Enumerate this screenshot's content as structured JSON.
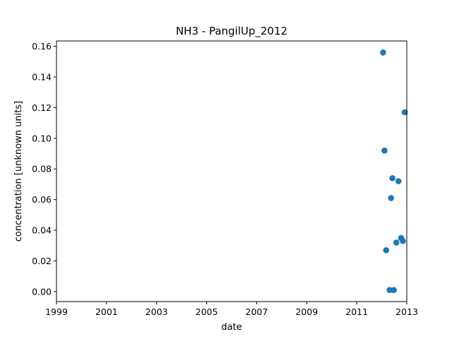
{
  "chart_data": {
    "type": "scatter",
    "title": "NH3 - PangilUp_2012",
    "xlabel": "date",
    "ylabel": "concentration [unknown units]",
    "xlim": [
      1999.0,
      2013.0
    ],
    "ylim": [
      -0.0065,
      0.1635
    ],
    "x_ticks": [
      "1999",
      "2001",
      "2003",
      "2005",
      "2007",
      "2009",
      "2011",
      "2013"
    ],
    "y_ticks": [
      "0.00",
      "0.02",
      "0.04",
      "0.06",
      "0.08",
      "0.10",
      "0.12",
      "0.14",
      "0.16"
    ],
    "grid": false,
    "marker_color": "#1f77b4",
    "points": [
      {
        "x": "2012-01-20",
        "y": 0.156
      },
      {
        "x": "2012-02-10",
        "y": 0.092
      },
      {
        "x": "2012-03-05",
        "y": 0.027
      },
      {
        "x": "2012-04-25",
        "y": 0.001
      },
      {
        "x": "2012-05-15",
        "y": 0.061
      },
      {
        "x": "2012-06-05",
        "y": 0.074
      },
      {
        "x": "2012-06-25",
        "y": 0.001
      },
      {
        "x": "2012-08-01",
        "y": 0.032
      },
      {
        "x": "2012-09-01",
        "y": 0.072
      },
      {
        "x": "2012-10-10",
        "y": 0.035
      },
      {
        "x": "2012-11-05",
        "y": 0.033
      },
      {
        "x": "2012-12-01",
        "y": 0.117
      }
    ]
  }
}
